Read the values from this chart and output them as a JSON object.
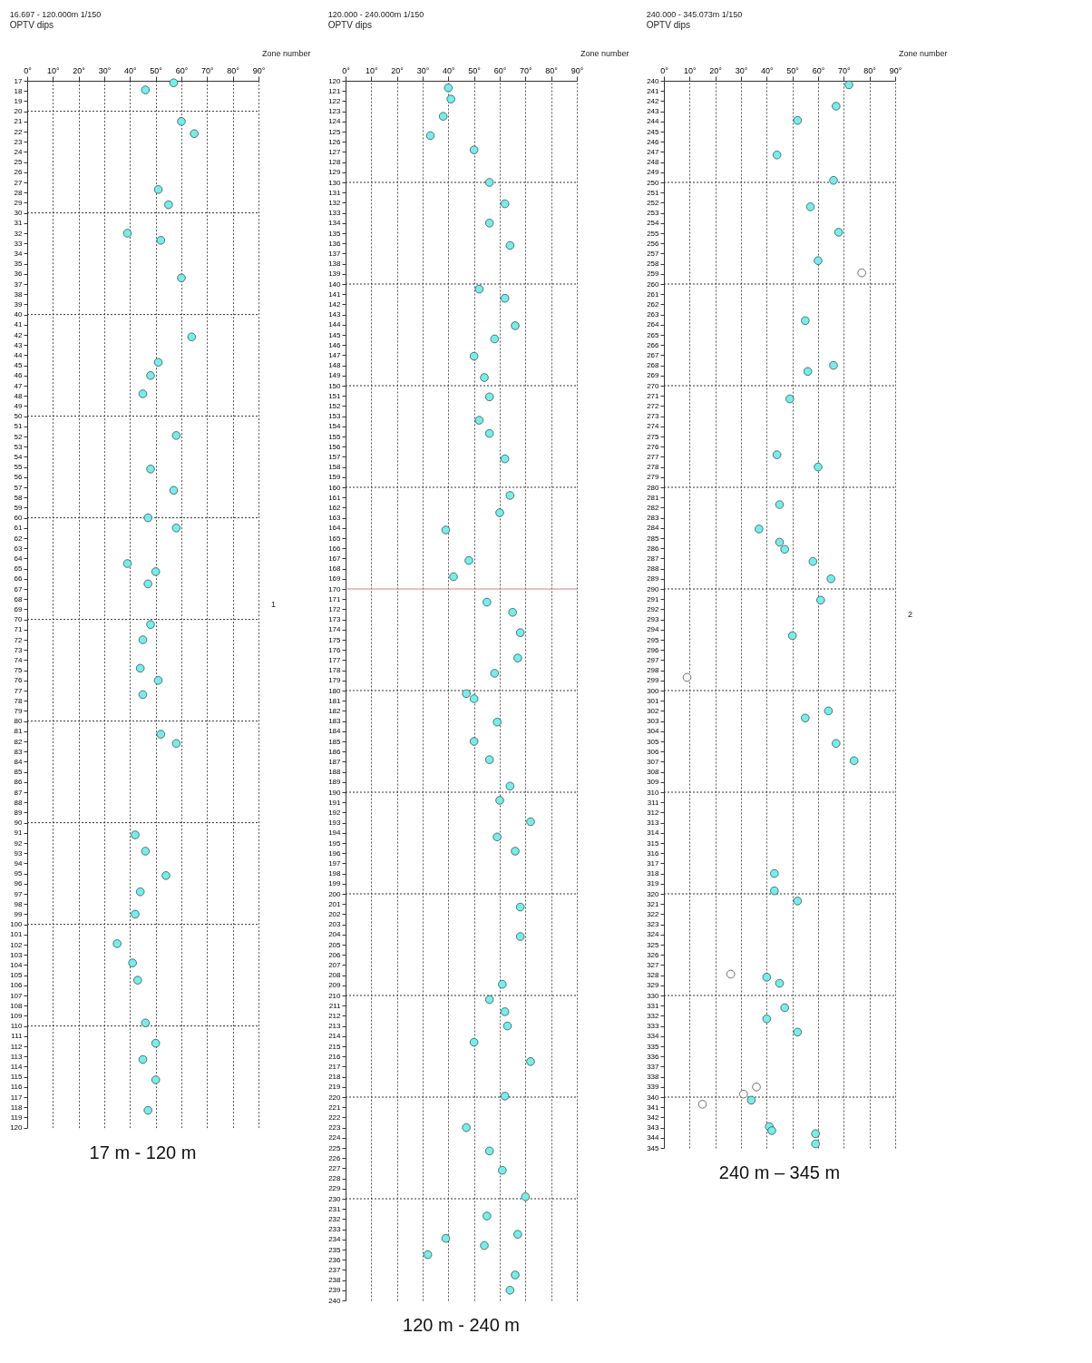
{
  "chart_data": [
    {
      "type": "scatter",
      "title": "16.697 - 120.000m  1/150",
      "subtitle": "OPTV dips",
      "xlabel": "17 m  -  120 m",
      "annotations": [
        "Zone number",
        "1"
      ],
      "xlim": [
        0,
        90
      ],
      "xticks": [
        {
          "value": 0,
          "label": "0°"
        },
        {
          "value": 10,
          "label": "10°"
        },
        {
          "value": 20,
          "label": "20°"
        },
        {
          "value": 30,
          "label": "30°"
        },
        {
          "value": 40,
          "label": "40°"
        },
        {
          "value": 50,
          "label": "50°"
        },
        {
          "value": 60,
          "label": "60°"
        },
        {
          "value": 70,
          "label": "70°"
        },
        {
          "value": 80,
          "label": "80°"
        },
        {
          "value": 90,
          "label": "90°"
        }
      ],
      "ylim": [
        120,
        17
      ],
      "yticks": [
        17,
        18,
        19,
        20,
        21,
        22,
        23,
        24,
        25,
        26,
        27,
        28,
        29,
        30,
        31,
        32,
        33,
        34,
        35,
        36,
        37,
        38,
        39,
        40,
        41,
        42,
        43,
        44,
        45,
        46,
        47,
        48,
        49,
        50,
        51,
        52,
        53,
        54,
        55,
        56,
        57,
        58,
        59,
        60,
        61,
        62,
        63,
        64,
        65,
        66,
        67,
        68,
        69,
        70,
        71,
        72,
        73,
        74,
        75,
        76,
        77,
        78,
        79,
        80,
        81,
        82,
        83,
        84,
        85,
        86,
        87,
        88,
        89,
        90,
        91,
        92,
        93,
        94,
        95,
        96,
        97,
        98,
        99,
        100,
        101,
        102,
        103,
        104,
        105,
        106,
        107,
        108,
        109,
        110,
        111,
        112,
        113,
        114,
        115,
        116,
        117,
        118,
        119,
        120
      ],
      "grid": "x",
      "marker": "circle",
      "legend": false,
      "ref_lines": [
        {
          "axis": "y",
          "value": 20,
          "line_style": "dotted"
        },
        {
          "axis": "y",
          "value": 30,
          "line_style": "dotted"
        },
        {
          "axis": "y",
          "value": 40,
          "line_style": "dotted"
        },
        {
          "axis": "y",
          "value": 50,
          "line_style": "dotted"
        },
        {
          "axis": "y",
          "value": 60,
          "line_style": "dotted"
        },
        {
          "axis": "y",
          "value": 70,
          "line_style": "dotted"
        },
        {
          "axis": "y",
          "value": 80,
          "line_style": "dotted"
        },
        {
          "axis": "y",
          "value": 90,
          "line_style": "dotted"
        },
        {
          "axis": "y",
          "value": 100,
          "line_style": "dotted"
        },
        {
          "axis": "y",
          "value": 110,
          "line_style": "dotted"
        }
      ],
      "series": [
        {
          "color": "#6ff0ee",
          "x": [
            57,
            46,
            60,
            65,
            51,
            55,
            39,
            52,
            60,
            64,
            51,
            48,
            45,
            58,
            48,
            57,
            47,
            58,
            39,
            50,
            47,
            48,
            45,
            44,
            51,
            45,
            52,
            58,
            42,
            46,
            54,
            44,
            42,
            35,
            41,
            43,
            46,
            50,
            45,
            50,
            47
          ],
          "values": [
            17.2,
            17.9,
            21.0,
            22.2,
            27.7,
            29.2,
            32.0,
            32.7,
            36.4,
            42.2,
            44.7,
            46.0,
            47.8,
            51.9,
            55.2,
            57.3,
            60.0,
            61.0,
            64.5,
            65.3,
            66.5,
            70.5,
            72.0,
            74.8,
            76.0,
            77.4,
            81.3,
            82.2,
            91.2,
            92.8,
            95.2,
            96.8,
            99.0,
            101.9,
            103.8,
            105.5,
            109.7,
            111.7,
            113.3,
            115.3,
            118.3
          ]
        }
      ]
    },
    {
      "type": "scatter",
      "title": "120.000 - 240.000m  1/150",
      "subtitle": "OPTV dips",
      "xlabel": "120 m  -  240 m",
      "annotations": [
        "Zone number"
      ],
      "xlim": [
        0,
        90
      ],
      "xticks": [
        {
          "value": 0,
          "label": "0°"
        },
        {
          "value": 10,
          "label": "10°"
        },
        {
          "value": 20,
          "label": "20°"
        },
        {
          "value": 30,
          "label": "30°"
        },
        {
          "value": 40,
          "label": "40°"
        },
        {
          "value": 50,
          "label": "50°"
        },
        {
          "value": 60,
          "label": "60°"
        },
        {
          "value": 70,
          "label": "70°"
        },
        {
          "value": 80,
          "label": "80°"
        },
        {
          "value": 90,
          "label": "90°"
        }
      ],
      "ylim": [
        240,
        120
      ],
      "yticks": [
        120,
        121,
        122,
        123,
        124,
        125,
        126,
        127,
        128,
        129,
        130,
        131,
        132,
        133,
        134,
        135,
        136,
        137,
        138,
        139,
        140,
        141,
        142,
        143,
        144,
        145,
        146,
        147,
        148,
        149,
        150,
        151,
        152,
        153,
        154,
        155,
        156,
        157,
        158,
        159,
        160,
        161,
        162,
        163,
        164,
        165,
        166,
        167,
        168,
        169,
        170,
        171,
        172,
        173,
        174,
        175,
        176,
        177,
        178,
        179,
        180,
        181,
        182,
        183,
        184,
        185,
        186,
        187,
        188,
        189,
        190,
        191,
        192,
        193,
        194,
        195,
        196,
        197,
        198,
        199,
        200,
        201,
        202,
        203,
        204,
        205,
        206,
        207,
        208,
        209,
        210,
        211,
        212,
        213,
        214,
        215,
        216,
        217,
        218,
        219,
        220,
        221,
        222,
        223,
        224,
        225,
        226,
        227,
        228,
        229,
        230,
        231,
        232,
        233,
        234,
        235,
        236,
        237,
        238,
        239,
        240
      ],
      "grid": "x",
      "marker": "circle",
      "legend": false,
      "ref_lines": [
        {
          "axis": "y",
          "value": 130,
          "line_style": "dotted"
        },
        {
          "axis": "y",
          "value": 140,
          "line_style": "dotted"
        },
        {
          "axis": "y",
          "value": 150,
          "line_style": "dotted"
        },
        {
          "axis": "y",
          "value": 160,
          "line_style": "dotted"
        },
        {
          "axis": "y",
          "value": 170,
          "line_style": "solid",
          "color": "#d08080"
        },
        {
          "axis": "y",
          "value": 180,
          "line_style": "dotted"
        },
        {
          "axis": "y",
          "value": 190,
          "line_style": "dotted"
        },
        {
          "axis": "y",
          "value": 200,
          "line_style": "dotted"
        },
        {
          "axis": "y",
          "value": 210,
          "line_style": "dotted"
        },
        {
          "axis": "y",
          "value": 220,
          "line_style": "dotted"
        },
        {
          "axis": "y",
          "value": 230,
          "line_style": "dotted"
        }
      ],
      "series": [
        {
          "color": "#6ff0ee",
          "x": [
            40,
            41,
            38,
            33,
            50,
            56,
            62,
            56,
            64,
            52,
            62,
            66,
            58,
            50,
            54,
            56,
            52,
            56,
            62,
            64,
            60,
            39,
            48,
            42,
            55,
            65,
            68,
            67,
            58,
            47,
            50,
            59,
            50,
            56,
            64,
            60,
            72,
            59,
            66,
            68,
            68,
            61,
            56,
            62,
            63,
            50,
            72,
            62,
            47,
            56,
            61,
            70,
            55,
            67,
            39,
            54,
            32,
            66,
            64
          ],
          "values": [
            120.7,
            121.8,
            123.5,
            125.4,
            126.8,
            130.0,
            132.1,
            134.0,
            136.2,
            140.5,
            141.4,
            144.1,
            145.4,
            147.1,
            149.2,
            151.1,
            153.4,
            154.7,
            157.2,
            160.8,
            162.5,
            164.2,
            167.2,
            168.8,
            171.3,
            172.3,
            174.3,
            176.8,
            178.3,
            180.3,
            180.8,
            183.1,
            185.0,
            186.8,
            189.4,
            190.8,
            192.9,
            194.4,
            195.8,
            201.3,
            204.2,
            208.9,
            210.4,
            211.6,
            213.0,
            214.6,
            216.5,
            219.9,
            223.0,
            225.3,
            227.2,
            229.8,
            231.7,
            233.5,
            233.9,
            234.6,
            235.5,
            237.5,
            239.0
          ]
        }
      ]
    },
    {
      "type": "scatter",
      "title": "240.000 - 345.073m  1/150",
      "subtitle": "OPTV dips",
      "xlabel": "240 m – 345 m",
      "annotations": [
        "Zone number",
        "2"
      ],
      "xlim": [
        0,
        90
      ],
      "xticks": [
        {
          "value": 0,
          "label": "0°"
        },
        {
          "value": 10,
          "label": "10°"
        },
        {
          "value": 20,
          "label": "20°"
        },
        {
          "value": 30,
          "label": "30°"
        },
        {
          "value": 40,
          "label": "40°"
        },
        {
          "value": 50,
          "label": "50°"
        },
        {
          "value": 60,
          "label": "60°"
        },
        {
          "value": 70,
          "label": "70°"
        },
        {
          "value": 80,
          "label": "80°"
        },
        {
          "value": 90,
          "label": "90°"
        }
      ],
      "ylim": [
        345,
        240
      ],
      "yticks": [
        240,
        241,
        242,
        243,
        244,
        245,
        246,
        247,
        248,
        249,
        250,
        251,
        252,
        253,
        254,
        255,
        256,
        257,
        258,
        259,
        260,
        261,
        262,
        263,
        264,
        265,
        266,
        267,
        268,
        269,
        270,
        271,
        272,
        273,
        274,
        275,
        276,
        277,
        278,
        279,
        280,
        281,
        282,
        283,
        284,
        285,
        286,
        287,
        288,
        289,
        290,
        291,
        292,
        293,
        294,
        295,
        296,
        297,
        298,
        299,
        300,
        301,
        302,
        303,
        304,
        305,
        306,
        307,
        308,
        309,
        310,
        311,
        312,
        313,
        314,
        315,
        316,
        317,
        318,
        319,
        320,
        321,
        322,
        323,
        324,
        325,
        326,
        327,
        328,
        329,
        330,
        331,
        332,
        333,
        334,
        335,
        336,
        337,
        338,
        339,
        340,
        341,
        342,
        343,
        344,
        345
      ],
      "grid": "x",
      "marker": "circle",
      "legend": false,
      "ref_lines": [
        {
          "axis": "y",
          "value": 250,
          "line_style": "dotted"
        },
        {
          "axis": "y",
          "value": 260,
          "line_style": "dotted"
        },
        {
          "axis": "y",
          "value": 270,
          "line_style": "dotted"
        },
        {
          "axis": "y",
          "value": 280,
          "line_style": "dotted"
        },
        {
          "axis": "y",
          "value": 290,
          "line_style": "dotted"
        },
        {
          "axis": "y",
          "value": 300,
          "line_style": "dotted"
        },
        {
          "axis": "y",
          "value": 310,
          "line_style": "dotted"
        },
        {
          "axis": "y",
          "value": 320,
          "line_style": "dotted"
        },
        {
          "axis": "y",
          "value": 330,
          "line_style": "dotted"
        },
        {
          "axis": "y",
          "value": 340,
          "line_style": "dotted"
        }
      ],
      "series": [
        {
          "color": "#6ff0ee",
          "x": [
            72,
            67,
            52,
            44,
            66,
            57,
            68,
            60,
            55,
            66,
            56,
            49,
            44,
            60,
            45,
            37,
            45,
            47,
            58,
            65,
            61,
            50,
            64,
            55,
            67,
            74,
            43,
            43,
            52,
            40,
            45,
            47,
            40,
            52,
            34,
            41,
            42,
            59,
            59
          ],
          "values": [
            240.4,
            242.5,
            243.9,
            247.3,
            249.8,
            252.4,
            254.9,
            257.7,
            263.6,
            268.0,
            268.6,
            271.3,
            276.8,
            278.0,
            281.7,
            284.1,
            285.4,
            286.1,
            287.3,
            289.0,
            291.1,
            294.6,
            302.0,
            302.7,
            305.2,
            306.9,
            318.0,
            319.7,
            320.7,
            328.2,
            328.8,
            331.2,
            332.3,
            333.6,
            340.3,
            342.9,
            343.3,
            343.6,
            344.6
          ]
        },
        {
          "color": "#ffffff",
          "x": [
            77,
            9,
            26,
            36,
            31,
            15
          ],
          "values": [
            258.9,
            298.7,
            327.9,
            339.0,
            339.7,
            340.7
          ]
        }
      ]
    }
  ]
}
